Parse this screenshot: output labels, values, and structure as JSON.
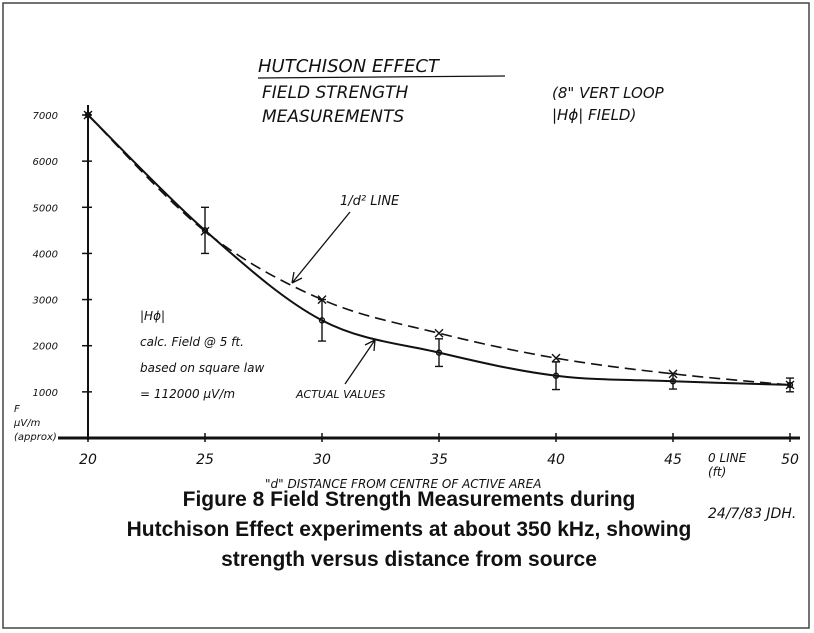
{
  "chart_data": {
    "type": "line",
    "title": "HUTCHISON EFFECT",
    "subtitle": [
      "FIELD STRENGTH",
      "MEASUREMENTS"
    ],
    "note": [
      "(8\" VERT LOOP",
      "|Hϕ| FIELD)"
    ],
    "calc_note": [
      "|Hϕ|",
      "calc. Field @ 5 ft.",
      "based on square law",
      "= 112000 µV/m"
    ],
    "y_label": [
      "F",
      "µV/m",
      "(approx)"
    ],
    "x_label": "\"d\" DISTANCE FROM CENTRE OF ACTIVE AREA",
    "zero_note": [
      "0 LINE",
      "(ft)"
    ],
    "signature": "24/7/83 JDH.",
    "x": [
      20,
      25,
      30,
      35,
      40,
      45,
      50
    ],
    "series": [
      {
        "name": "ACTUAL VALUES",
        "color": "#111111",
        "dashed": false,
        "values": [
          7000,
          4500,
          2550,
          1850,
          1350,
          1230,
          1150
        ],
        "errors": [
          null,
          500,
          450,
          300,
          300,
          170,
          150
        ]
      },
      {
        "name": "1/d² LINE",
        "color": "#111111",
        "dashed": true,
        "values": [
          7000,
          4480,
          3000,
          2270,
          1730,
          1390,
          1150
        ]
      }
    ],
    "xlim": [
      20,
      50
    ],
    "ylim": [
      0,
      7000
    ],
    "xticks": [
      20,
      25,
      30,
      35,
      40,
      45,
      50
    ],
    "yticks": [
      1000,
      2000,
      3000,
      4000,
      5000,
      6000,
      7000
    ]
  },
  "caption": [
    "Figure 8    Field Strength Measurements during",
    "Hutchison Effect experiments at about 350 kHz, showing",
    "strength versus distance from source"
  ]
}
